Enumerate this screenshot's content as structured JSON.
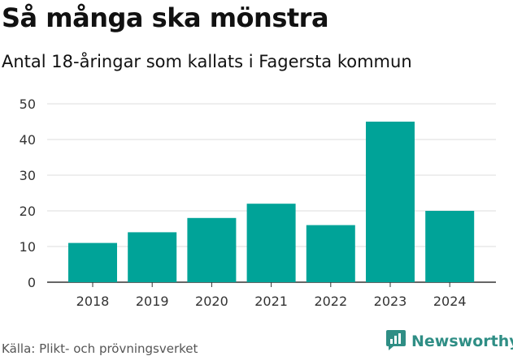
{
  "title": "Så många ska mönstra",
  "subtitle": "Antal 18-åringar som kallats i Fagersta kommun",
  "source": "Källa: Plikt- och prövningsverket",
  "brand": {
    "name": "Newsworthy",
    "icon": "newsworthy-chart-logo-icon",
    "color": "#2f8e85"
  },
  "colors": {
    "bar": "#00a398",
    "grid": "#dddddd",
    "axis": "#333333"
  },
  "chart_data": {
    "type": "bar",
    "title": "Så många ska mönstra",
    "subtitle": "Antal 18-åringar som kallats i Fagersta kommun",
    "xlabel": "",
    "ylabel": "",
    "categories": [
      "2018",
      "2019",
      "2020",
      "2021",
      "2022",
      "2023",
      "2024"
    ],
    "values": [
      11,
      14,
      18,
      22,
      16,
      45,
      20
    ],
    "ylim": [
      0,
      50
    ],
    "yticks": [
      0,
      10,
      20,
      30,
      40,
      50
    ],
    "grid": true,
    "legend": "none"
  }
}
